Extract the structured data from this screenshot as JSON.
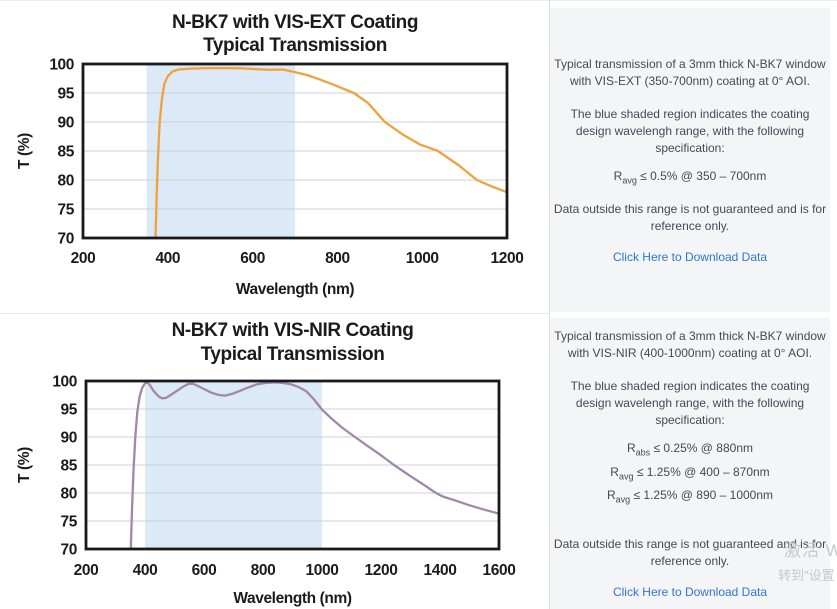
{
  "theme": {
    "panel_bg": "#f4f5f6",
    "text_color": "#3e4b59",
    "link_color": "#2e74d9",
    "grid_color": "#ccd1d6",
    "axis_color": "#191919",
    "vis_ext_line_color": "#EFA23E",
    "vis_nir_line_color": "#A187A9",
    "shade_color": "#DCE9F6"
  },
  "chart_data": [
    {
      "type": "line",
      "title_line1": "N-BK7 with VIS-EXT Coating",
      "title_line2": "Typical Transmission",
      "xlabel": "Wavelength (nm)",
      "ylabel": "T (%)",
      "xlim": [
        200,
        1200
      ],
      "ylim": [
        70,
        100
      ],
      "x_ticks": [
        200,
        400,
        600,
        800,
        1000,
        1200
      ],
      "y_ticks": [
        100,
        95,
        90,
        85,
        80,
        75,
        70
      ],
      "shaded_region_nm": [
        350,
        700
      ],
      "line_color": "#EFA23E",
      "shade_color": "#DCE9F6",
      "series_name": "VIS-EXT coated N-BK7 transmission",
      "points": [
        [
          367,
          60
        ],
        [
          371,
          70
        ],
        [
          374,
          78
        ],
        [
          377,
          84
        ],
        [
          381,
          90
        ],
        [
          386,
          94
        ],
        [
          392,
          96.6
        ],
        [
          400,
          97.9
        ],
        [
          411,
          98.7
        ],
        [
          425,
          99.05
        ],
        [
          455,
          99.2
        ],
        [
          495,
          99.3
        ],
        [
          540,
          99.3
        ],
        [
          575,
          99.25
        ],
        [
          610,
          99.1
        ],
        [
          640,
          99.0
        ],
        [
          672,
          99.05
        ],
        [
          700,
          98.6
        ],
        [
          728,
          98.1
        ],
        [
          756,
          97.4
        ],
        [
          785,
          96.6
        ],
        [
          812,
          95.8
        ],
        [
          839,
          95.0
        ],
        [
          872,
          93.3
        ],
        [
          912,
          90.0
        ],
        [
          953,
          87.9
        ],
        [
          995,
          86.1
        ],
        [
          1037,
          85.0
        ],
        [
          1085,
          82.6
        ],
        [
          1129,
          80.0
        ],
        [
          1164,
          78.9
        ],
        [
          1200,
          77.9
        ]
      ]
    },
    {
      "type": "line",
      "title_line1": "N-BK7 with VIS-NIR Coating",
      "title_line2": "Typical Transmission",
      "xlabel": "Wavelength (nm)",
      "ylabel": "T (%)",
      "xlim": [
        200,
        1600
      ],
      "ylim": [
        70,
        100
      ],
      "x_ticks": [
        200,
        400,
        600,
        800,
        1000,
        1200,
        1400,
        1600
      ],
      "y_ticks": [
        100,
        95,
        90,
        85,
        80,
        75,
        70
      ],
      "shaded_region_nm": [
        400,
        1000
      ],
      "line_color": "#A187A9",
      "shade_color": "#DCE9F6",
      "series_name": "VIS-NIR coated N-BK7 transmission",
      "points": [
        [
          348,
          60
        ],
        [
          352,
          70
        ],
        [
          356,
          77
        ],
        [
          361,
          84
        ],
        [
          367,
          90
        ],
        [
          374,
          94.5
        ],
        [
          382,
          97.3
        ],
        [
          391,
          98.8
        ],
        [
          399,
          99.5
        ],
        [
          407,
          99.8
        ],
        [
          416,
          99.3
        ],
        [
          430,
          98.2
        ],
        [
          445,
          97.3
        ],
        [
          458,
          96.9
        ],
        [
          472,
          97.0
        ],
        [
          490,
          97.6
        ],
        [
          510,
          98.3
        ],
        [
          530,
          99.0
        ],
        [
          548,
          99.5
        ],
        [
          563,
          99.5
        ],
        [
          580,
          99.1
        ],
        [
          602,
          98.5
        ],
        [
          626,
          97.9
        ],
        [
          650,
          97.5
        ],
        [
          672,
          97.4
        ],
        [
          695,
          97.7
        ],
        [
          720,
          98.2
        ],
        [
          748,
          98.8
        ],
        [
          778,
          99.4
        ],
        [
          808,
          99.65
        ],
        [
          840,
          99.75
        ],
        [
          868,
          99.65
        ],
        [
          896,
          99.4
        ],
        [
          922,
          98.9
        ],
        [
          946,
          98.2
        ],
        [
          970,
          96.9
        ],
        [
          1000,
          94.9
        ],
        [
          1032,
          93.3
        ],
        [
          1070,
          91.6
        ],
        [
          1112,
          90.0
        ],
        [
          1152,
          88.5
        ],
        [
          1196,
          86.9
        ],
        [
          1244,
          85.0
        ],
        [
          1300,
          83.0
        ],
        [
          1344,
          81.5
        ],
        [
          1383,
          80.1
        ],
        [
          1408,
          79.4
        ],
        [
          1450,
          78.7
        ],
        [
          1500,
          77.8
        ],
        [
          1552,
          77.0
        ],
        [
          1600,
          76.3
        ]
      ]
    }
  ],
  "panels": [
    {
      "para1": "Typical transmission of a 3mm thick N-BK7 window with VIS-EXT (350-700nm) coating at 0° AOI.",
      "para2": "The blue shaded region indicates the coating design wavelengh range, with the following specification:",
      "specs": [
        {
          "sym": "R",
          "sub": "avg",
          "rest": " ≤ 0.5% @ 350 – 700nm"
        }
      ],
      "para3": "Data outside this range is not guaranteed and is for reference only.",
      "link_text": "Click Here to Download Data"
    },
    {
      "para1": "Typical transmission of a 3mm thick N-BK7 window with VIS-NIR (400-1000nm) coating at 0° AOI.",
      "para2": "The blue shaded region indicates the coating design wavelengh range, with the following specification:",
      "specs": [
        {
          "sym": "R",
          "sub": "abs",
          "rest": " ≤ 0.25% @ 880nm"
        },
        {
          "sym": "R",
          "sub": "avg",
          "rest": " ≤ 1.25% @ 400 – 870nm"
        },
        {
          "sym": "R",
          "sub": "avg",
          "rest": " ≤ 1.25% @ 890 – 1000nm"
        }
      ],
      "para3": "Data outside this range is not guaranteed and is for reference only.",
      "link_text": "Click Here to Download Data"
    }
  ],
  "watermark": {
    "line1": "激活 W",
    "line2": "转到\"设置"
  }
}
